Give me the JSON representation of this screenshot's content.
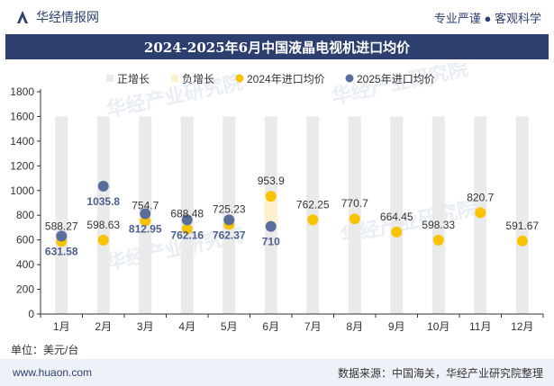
{
  "header": {
    "brand": "华经情报网",
    "tagline": "专业严谨 ● 客观科学"
  },
  "unit_label": "单位：美元/台",
  "footer": {
    "site": "www.huaon.com",
    "source": "数据来源：中国海关，华经产业研究院整理"
  },
  "watermark": "华经产业研究院",
  "colors": {
    "title_bg": "#2d3f6e",
    "bar_pos": "#eaeaea",
    "bar_neg": "#fdf0cc",
    "line2024": "#f8c300",
    "line2025": "#5a6e9c",
    "label2024": "#333333",
    "label2025": "#4c5f8e"
  },
  "chart_data": {
    "type": "bar",
    "title": "2024-2025年6月中国液晶电视机进口均价",
    "legend": [
      "正增长",
      "负增长",
      "2024年进口均价",
      "2025年进口均价"
    ],
    "legend_position": "top",
    "categories": [
      "1月",
      "2月",
      "3月",
      "4月",
      "5月",
      "6月",
      "7月",
      "8月",
      "9月",
      "10月",
      "11月",
      "12月"
    ],
    "ylim": [
      0,
      1800
    ],
    "yticks": [
      0,
      200,
      400,
      600,
      800,
      1000,
      1200,
      1400,
      1600,
      1800
    ],
    "series": [
      {
        "name": "2024年进口均价",
        "values": [
          588.27,
          598.63,
          754.7,
          688.48,
          725.23,
          953.9,
          762.25,
          770.7,
          664.45,
          598.33,
          820.7,
          591.67
        ]
      },
      {
        "name": "2025年进口均价",
        "values": [
          631.58,
          1035.8,
          812.95,
          762.16,
          762.37,
          710,
          null,
          null,
          null,
          null,
          null,
          null
        ]
      }
    ],
    "growth_bars": {
      "positive_months": [
        "1月",
        "2月",
        "3月",
        "4月",
        "5月"
      ],
      "negative_months": [
        "6月"
      ]
    },
    "labels2024": [
      "588.27",
      "598.63",
      "754.7",
      "688.48",
      "725.23",
      "953.9",
      "762.25",
      "770.7",
      "664.45",
      "598.33",
      "820.7",
      "591.67"
    ],
    "labels2025": [
      "631.58",
      "1035.8",
      "812.95",
      "762.16",
      "762.37",
      "710"
    ],
    "grid": false
  }
}
